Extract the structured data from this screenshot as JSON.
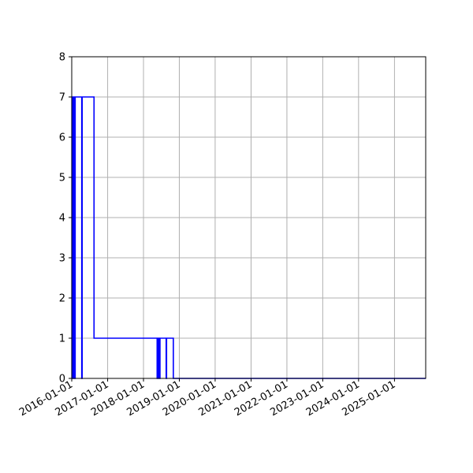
{
  "chart_data": {
    "type": "line",
    "title": "",
    "xlabel": "",
    "ylabel": "",
    "grid": true,
    "legend": "none",
    "colors": {
      "series": "#0000ff",
      "grid": "#b0b0b0",
      "axes": "#000000"
    },
    "xlim": [
      "2016-01-01",
      "2025-11-15"
    ],
    "ylim": [
      0,
      8
    ],
    "x_ticks": [
      "2016-01-01",
      "2017-01-01",
      "2018-01-01",
      "2019-01-01",
      "2020-01-01",
      "2021-01-01",
      "2022-01-01",
      "2023-01-01",
      "2024-01-01",
      "2025-01-01"
    ],
    "y_ticks": [
      "0",
      "1",
      "2",
      "3",
      "4",
      "5",
      "6",
      "7",
      "8"
    ],
    "series": [
      {
        "step": "post",
        "x": [
          "2016-01-01",
          "2016-01-03",
          "2016-01-05",
          "2016-01-07",
          "2016-01-09",
          "2016-01-12",
          "2016-01-14",
          "2016-01-16",
          "2016-01-18",
          "2016-01-21",
          "2016-01-25",
          "2016-02-05",
          "2016-03-01",
          "2016-04-01",
          "2016-04-12",
          "2016-04-14",
          "2016-04-16",
          "2016-05-01",
          "2016-08-15",
          "2017-08-01",
          "2018-05-20",
          "2018-05-23",
          "2018-05-26",
          "2018-05-29",
          "2018-06-01",
          "2018-06-04",
          "2018-06-10",
          "2018-06-18",
          "2018-08-20",
          "2018-08-24",
          "2018-08-28",
          "2018-10-25",
          "2018-11-01",
          "2019-01-01",
          "2025-11-15"
        ],
        "y": [
          0,
          7,
          0,
          7,
          0,
          7,
          0,
          7,
          0,
          7,
          0,
          7,
          7,
          7,
          0,
          0,
          7,
          7,
          1,
          1,
          0,
          1,
          0,
          1,
          0,
          1,
          0,
          1,
          0,
          1,
          1,
          1,
          0,
          0,
          0
        ]
      }
    ]
  }
}
